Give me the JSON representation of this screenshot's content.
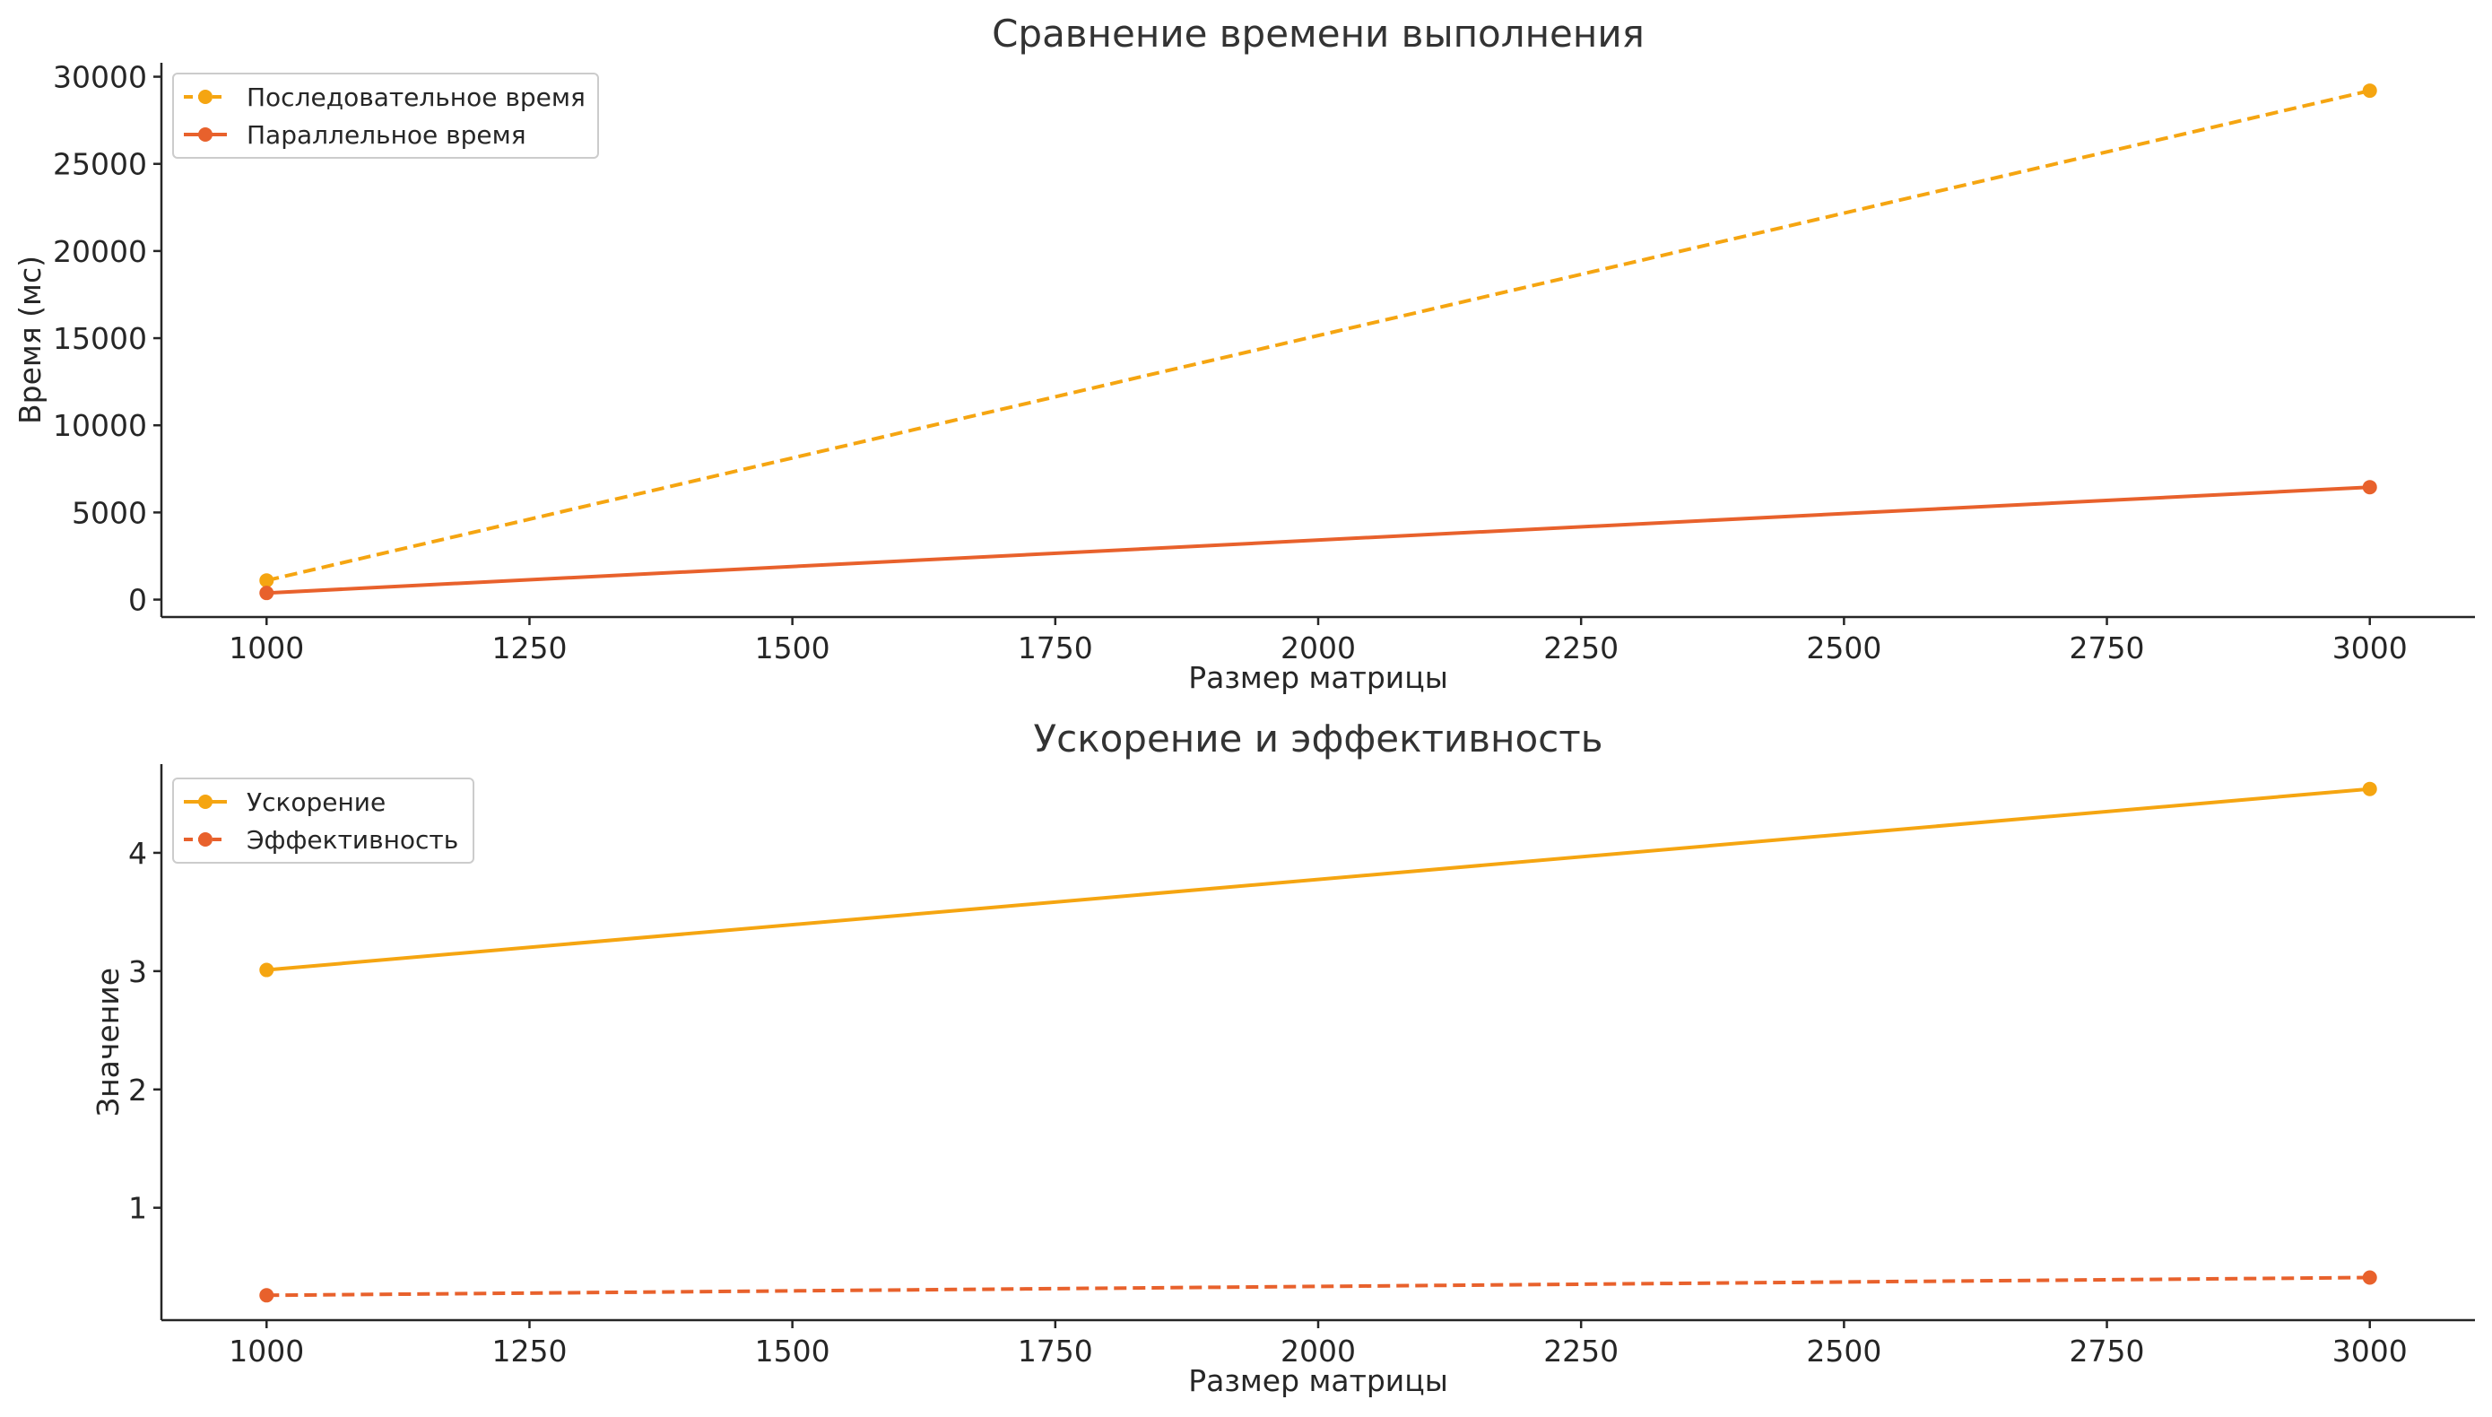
{
  "chart_data": [
    {
      "type": "line",
      "title": "Сравнение времени выполнения",
      "xlabel": "Размер матрицы",
      "ylabel": "Время (мс)",
      "x": [
        1000,
        3000
      ],
      "xlim": [
        900,
        3100
      ],
      "ylim": [
        -1000,
        30800
      ],
      "xticks": [
        1000,
        1250,
        1500,
        1750,
        2000,
        2250,
        2500,
        2750,
        3000
      ],
      "yticks": [
        0,
        5000,
        10000,
        15000,
        20000,
        25000,
        30000
      ],
      "grid": false,
      "legend_position": "top-left",
      "series": [
        {
          "name": "Последовательное время",
          "values": [
            1100,
            29200
          ],
          "color": "#F5A511",
          "line_style": "dashed",
          "marker": "circle"
        },
        {
          "name": "Параллельное время",
          "values": [
            380,
            6450
          ],
          "color": "#E8612C",
          "line_style": "solid",
          "marker": "circle"
        }
      ]
    },
    {
      "type": "line",
      "title": "Ускорение и эффективность",
      "xlabel": "Размер матрицы",
      "ylabel": "Значение",
      "x": [
        1000,
        3000
      ],
      "xlim": [
        900,
        3100
      ],
      "ylim": [
        0.05,
        4.75
      ],
      "xticks": [
        1000,
        1250,
        1500,
        1750,
        2000,
        2250,
        2500,
        2750,
        3000
      ],
      "yticks": [
        1,
        2,
        3,
        4
      ],
      "grid": false,
      "legend_position": "top-left",
      "series": [
        {
          "name": "Ускорение",
          "values": [
            3.01,
            4.54
          ],
          "color": "#F5A511",
          "line_style": "solid",
          "marker": "circle"
        },
        {
          "name": "Эффективность",
          "values": [
            0.26,
            0.41
          ],
          "color": "#E8612C",
          "line_style": "dashed",
          "marker": "circle"
        }
      ]
    }
  ]
}
